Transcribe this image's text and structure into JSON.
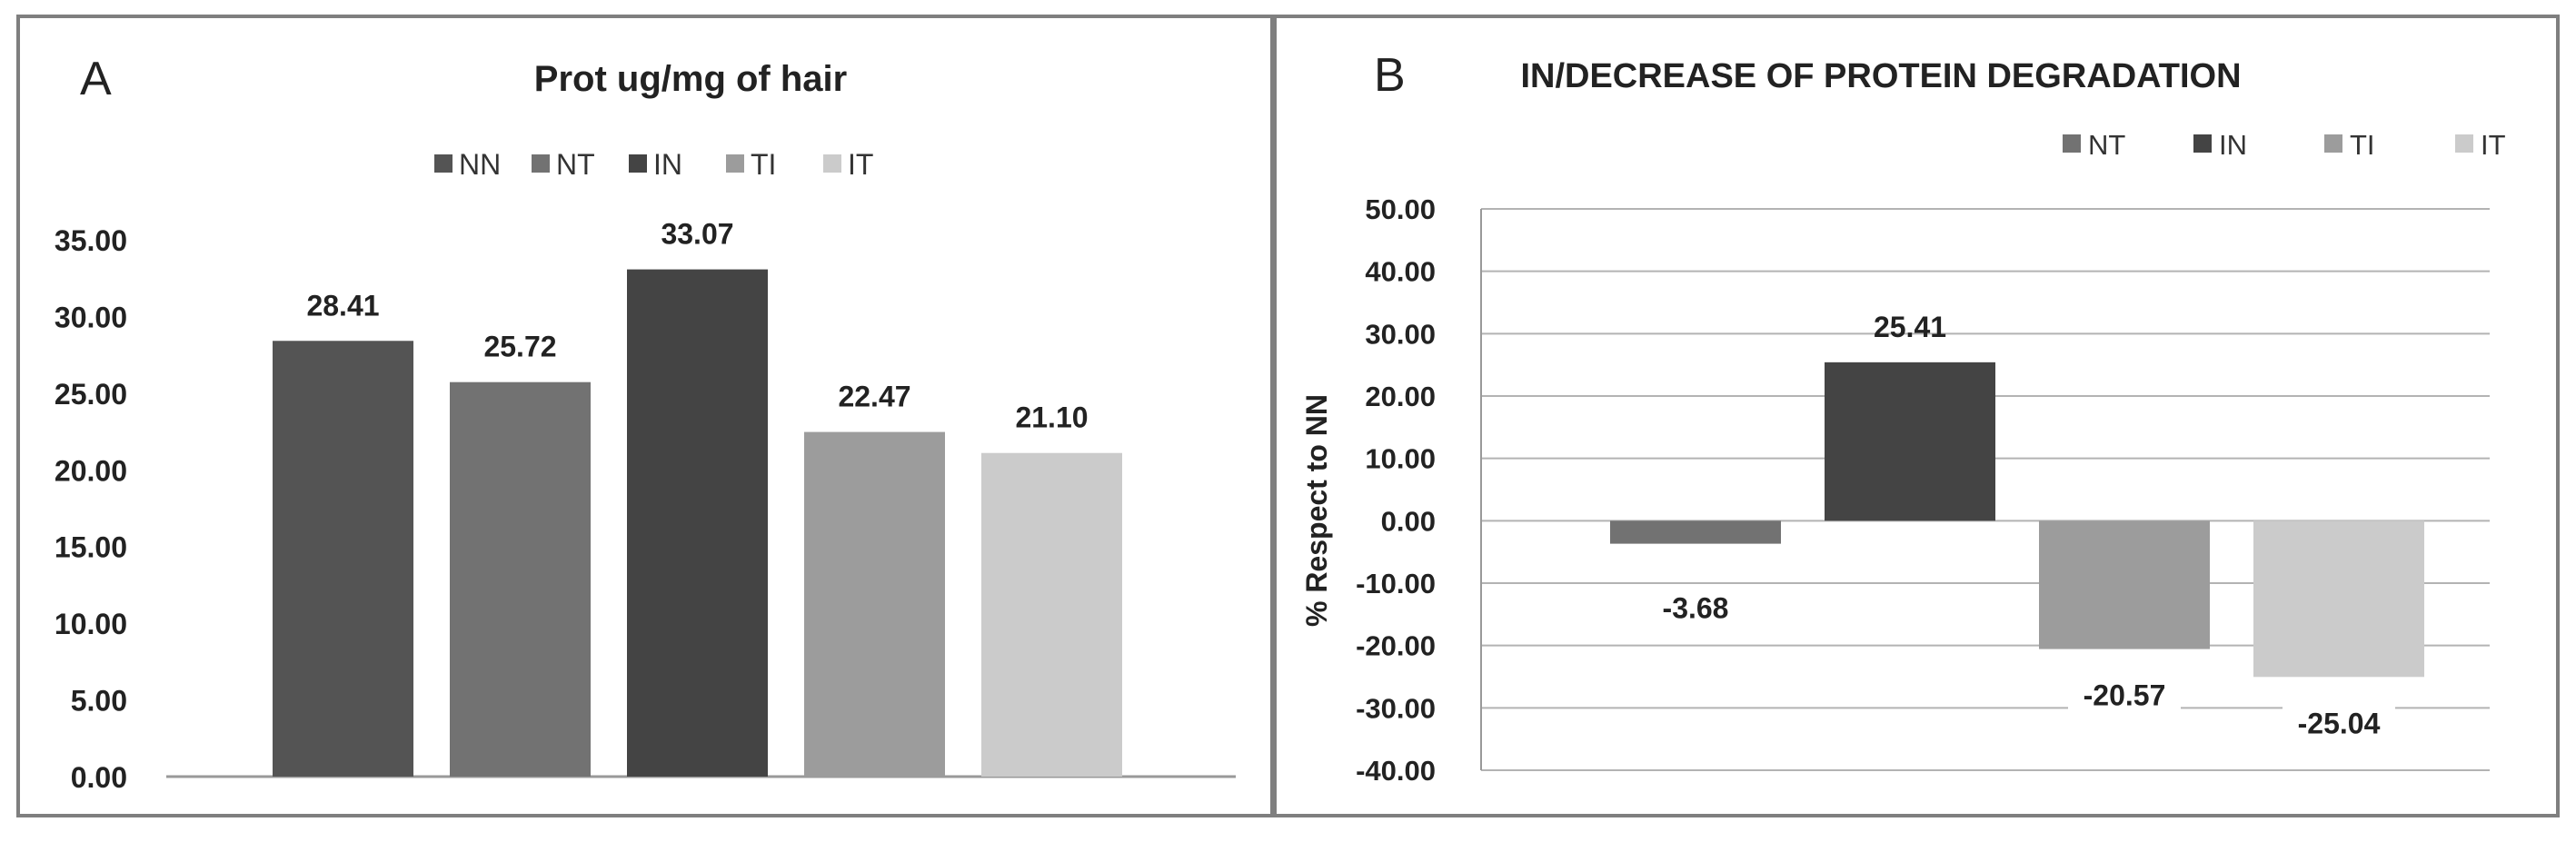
{
  "chart_data": [
    {
      "type": "bar",
      "panel_label": "A",
      "title": "Prot ug/mg of hair",
      "categories": [
        "NN",
        "NT",
        "IN",
        "TI",
        "IT"
      ],
      "values": [
        28.41,
        25.72,
        33.07,
        22.47,
        21.1
      ],
      "value_labels": [
        "28.41",
        "25.72",
        "33.07",
        "22.47",
        "21.10"
      ],
      "colors": [
        "#545454",
        "#727272",
        "#444444",
        "#9c9c9c",
        "#cbcbcb"
      ],
      "legend": [
        "NN",
        "NT",
        "IN",
        "TI",
        "IT"
      ],
      "legend_position": "top",
      "xlabel": "",
      "ylabel": "",
      "ylim": [
        0,
        35
      ],
      "yticks": [
        "0.00",
        "5.00",
        "10.00",
        "15.00",
        "20.00",
        "25.00",
        "30.00",
        "35.00"
      ],
      "grid": false
    },
    {
      "type": "bar",
      "panel_label": "B",
      "title": "IN/DECREASE OF PROTEIN DEGRADATION",
      "categories": [
        "NT",
        "IN",
        "TI",
        "IT"
      ],
      "values": [
        -3.68,
        25.41,
        -20.57,
        -25.04
      ],
      "value_labels": [
        "-3.68",
        "25.41",
        "-20.57",
        "-25.04"
      ],
      "colors": [
        "#727272",
        "#444444",
        "#9c9c9c",
        "#cbcbcb"
      ],
      "legend": [
        "NT",
        "IN",
        "TI",
        "IT"
      ],
      "legend_position": "top-right",
      "xlabel": "",
      "ylabel": "% Respect to NN",
      "ylim": [
        -40,
        50
      ],
      "yticks": [
        "-40.00",
        "-30.00",
        "-20.00",
        "-10.00",
        "0.00",
        "10.00",
        "20.00",
        "30.00",
        "40.00",
        "50.00"
      ],
      "grid": true
    }
  ]
}
